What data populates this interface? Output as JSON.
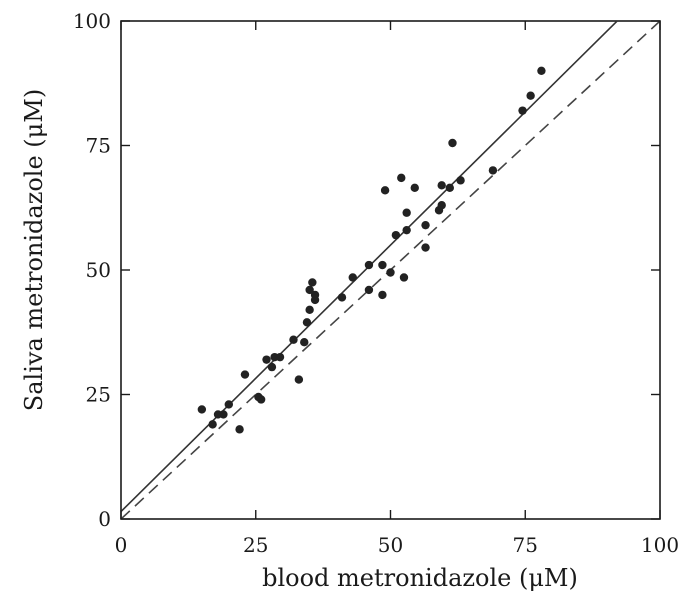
{
  "chart_data": {
    "type": "scatter",
    "xlabel": "blood metronidazole (μM)",
    "ylabel": "Saliva metronidazole (μM)",
    "xlim": [
      0,
      100
    ],
    "ylim": [
      0,
      100
    ],
    "x_ticks": [
      "0",
      "25",
      "50",
      "75",
      "100"
    ],
    "y_ticks": [
      "0",
      "25",
      "50",
      "75",
      "100"
    ],
    "grid": false,
    "legend": "none",
    "series": [
      {
        "marker": "filled-circle",
        "color": "#222222",
        "points": [
          [
            15,
            22
          ],
          [
            17,
            19
          ],
          [
            18,
            21
          ],
          [
            19,
            21
          ],
          [
            20,
            23
          ],
          [
            22,
            18
          ],
          [
            23,
            29
          ],
          [
            25.5,
            24.5
          ],
          [
            26,
            24
          ],
          [
            27,
            32
          ],
          [
            28,
            30.5
          ],
          [
            28.5,
            32.5
          ],
          [
            29.5,
            32.5
          ],
          [
            32,
            36
          ],
          [
            33,
            28
          ],
          [
            34,
            35.5
          ],
          [
            34.5,
            39.5
          ],
          [
            35,
            46
          ],
          [
            35,
            42
          ],
          [
            35.5,
            47.5
          ],
          [
            36,
            45
          ],
          [
            36,
            44
          ],
          [
            41,
            44.5
          ],
          [
            43,
            48.5
          ],
          [
            46,
            51
          ],
          [
            46,
            46
          ],
          [
            48.5,
            51
          ],
          [
            48.5,
            45
          ],
          [
            49,
            66
          ],
          [
            50,
            49.5
          ],
          [
            51,
            57
          ],
          [
            52,
            68.5
          ],
          [
            52.5,
            48.5
          ],
          [
            53,
            61.5
          ],
          [
            53,
            58
          ],
          [
            54.5,
            66.5
          ],
          [
            56.5,
            54.5
          ],
          [
            56.5,
            59
          ],
          [
            59,
            62
          ],
          [
            59.5,
            63
          ],
          [
            59.5,
            67
          ],
          [
            61,
            66.5
          ],
          [
            61.5,
            75.5
          ],
          [
            63,
            68
          ],
          [
            69,
            70
          ],
          [
            74.5,
            82
          ],
          [
            76,
            85
          ],
          [
            78,
            90
          ]
        ]
      }
    ],
    "reference_lines": [
      {
        "style": "solid",
        "color": "#333333",
        "slope": 1.07,
        "intercept": 1.5
      },
      {
        "style": "dashed",
        "color": "#444444",
        "slope": 1.0,
        "intercept": 0
      }
    ]
  }
}
